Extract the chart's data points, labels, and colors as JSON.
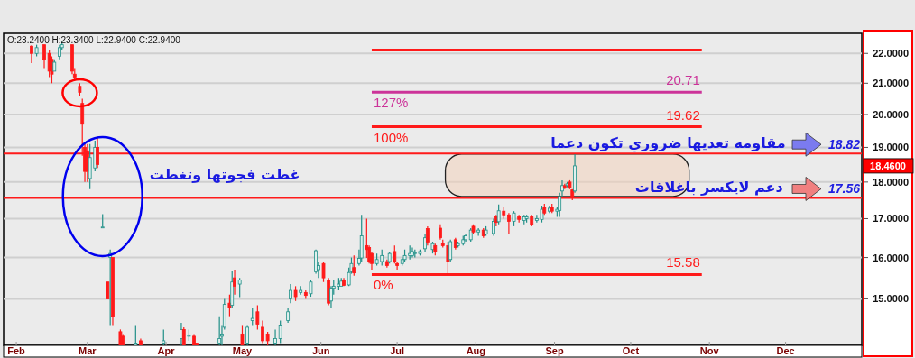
{
  "chart_data": {
    "type": "candlestick",
    "log": true,
    "grid": "y",
    "xlim": [
      "--01-27",
      "--12-31"
    ],
    "xticks": [
      {
        "value": "--02-01",
        "label": "Feb"
      },
      {
        "value": "--03-01",
        "label": "Mar"
      },
      {
        "value": "--04-01",
        "label": "Apr"
      },
      {
        "value": "--05-01",
        "label": "May"
      },
      {
        "value": "--06-01",
        "label": "Jun"
      },
      {
        "value": "--07-01",
        "label": "Jul"
      },
      {
        "value": "--08-01",
        "label": "Aug"
      },
      {
        "value": "--09-01",
        "label": "Sep"
      },
      {
        "value": "--10-01",
        "label": "Oct"
      },
      {
        "value": "--11-01",
        "label": "Nov"
      },
      {
        "value": "--12-01",
        "label": "Dec"
      }
    ],
    "ylim": [
      13.95,
      22.7
    ],
    "yticks": [
      {
        "value": 15,
        "label": "15.0000"
      },
      {
        "value": 16,
        "label": "16.0000"
      },
      {
        "value": 17,
        "label": "17.0000"
      },
      {
        "value": 18,
        "label": "18.0000"
      },
      {
        "value": 19,
        "label": "19.0000"
      },
      {
        "value": 20,
        "label": "20.0000"
      },
      {
        "value": 21,
        "label": "21.0000"
      },
      {
        "value": 22,
        "label": "22.0000"
      }
    ],
    "series": [
      {
        "type": "candlestick",
        "x": [
          "--02-07",
          "--02-09",
          "--02-12",
          "--02-14",
          "--02-15",
          "--02-16",
          "--02-18",
          "--02-19",
          "--02-23",
          "--02-24",
          "--02-26",
          "--02-27",
          "--02-28",
          "--03-01",
          "--03-02",
          "--03-04",
          "--03-05",
          "--03-07",
          "--03-09",
          "--03-10",
          "--03-11",
          "--03-14",
          "--03-15",
          "--03-20",
          "--03-22",
          "--03-31",
          "--04-07",
          "--04-08",
          "--04-10",
          "--04-12",
          "--04-13",
          "--04-22",
          "--04-23",
          "--04-24",
          "--04-26",
          "--04-27",
          "--04-28",
          "--04-30",
          "--05-01",
          "--05-03",
          "--05-05",
          "--05-07",
          "--05-09",
          "--05-11",
          "--05-14",
          "--05-16",
          "--05-19",
          "--05-20",
          "--05-22",
          "--05-24",
          "--05-26",
          "--05-28",
          "--05-30",
          "--05-31",
          "--06-02",
          "--06-04",
          "--06-05",
          "--06-06",
          "--06-08",
          "--06-09",
          "--06-10",
          "--06-12",
          "--06-13",
          "--06-14",
          "--06-16",
          "--06-17",
          "--06-19",
          "--06-20",
          "--06-21",
          "--06-23",
          "--06-25",
          "--06-27",
          "--06-28",
          "--06-30",
          "--07-01",
          "--07-03",
          "--07-04",
          "--07-06",
          "--07-07",
          "--07-08",
          "--07-10",
          "--07-12",
          "--07-13",
          "--07-15",
          "--07-16",
          "--07-18",
          "--07-19",
          "--07-21",
          "--07-22",
          "--07-24",
          "--07-25",
          "--07-27",
          "--07-28",
          "--07-30",
          "--07-31",
          "--08-02",
          "--08-04",
          "--08-05",
          "--08-08",
          "--08-09",
          "--08-10",
          "--08-12",
          "--08-14",
          "--08-16",
          "--08-18",
          "--08-20",
          "--08-21",
          "--08-23",
          "--08-25",
          "--08-27",
          "--08-28",
          "--08-30",
          "--08-31",
          "--09-02",
          "--09-03",
          "--09-04",
          "--09-05",
          "--09-06",
          "--09-07",
          "--09-08",
          "--09-09"
        ],
        "ohlc": [
          [
            22.25,
            22.28,
            21.67,
            22.0
          ],
          [
            22.0,
            22.3,
            21.9,
            22.2
          ],
          [
            22.3,
            22.3,
            21.5,
            21.8
          ],
          [
            22.0,
            22.1,
            21.2,
            21.4
          ],
          [
            21.8,
            21.9,
            21.0,
            21.3
          ],
          [
            21.4,
            21.8,
            21.4,
            21.7
          ],
          [
            21.9,
            22.3,
            21.8,
            22.2
          ],
          [
            22.2,
            22.4,
            22.1,
            22.3
          ],
          [
            22.3,
            22.3,
            21.3,
            21.4
          ],
          [
            21.3,
            21.5,
            21.1,
            21.2
          ],
          [
            20.9,
            21.0,
            20.6,
            20.7
          ],
          [
            20.35,
            20.5,
            18.75,
            19.7
          ],
          [
            19.0,
            19.1,
            18.0,
            18.3
          ],
          [
            18.9,
            19.1,
            18.0,
            18.3
          ],
          [
            18.1,
            19.1,
            17.8,
            18.7
          ],
          [
            18.4,
            19.2,
            18.3,
            19.0
          ],
          [
            19.0,
            19.3,
            18.4,
            18.5
          ],
          [
            16.78,
            17.12,
            16.78,
            16.78
          ],
          [
            15.4,
            15.4,
            15.0,
            15.0
          ],
          [
            16.0,
            16.2,
            14.4,
            16.1
          ],
          [
            16.0,
            16.0,
            14.4,
            14.6
          ],
          [
            14.25,
            14.3,
            13.95,
            13.95
          ],
          [
            14.15,
            14.2,
            13.95,
            13.95
          ],
          [
            13.95,
            14.4,
            13.95,
            14.0
          ],
          [
            14.05,
            14.1,
            13.95,
            13.95
          ],
          [
            14.0,
            14.3,
            13.95,
            14.05
          ],
          [
            14.1,
            14.45,
            13.95,
            14.3
          ],
          [
            14.3,
            14.35,
            13.95,
            13.95
          ],
          [
            14.15,
            14.3,
            14.05,
            14.18
          ],
          [
            14.15,
            14.2,
            13.95,
            13.95
          ],
          [
            14.0,
            14.0,
            13.95,
            13.95
          ],
          [
            14.0,
            14.6,
            13.95,
            14.1
          ],
          [
            14.15,
            14.4,
            13.95,
            14.2
          ],
          [
            14.35,
            15.0,
            14.3,
            14.87
          ],
          [
            14.9,
            15.1,
            14.6,
            14.8
          ],
          [
            14.85,
            15.66,
            14.8,
            15.4
          ],
          [
            15.5,
            15.7,
            15.1,
            15.3
          ],
          [
            15.35,
            15.5,
            15.04,
            15.45
          ],
          [
            14.2,
            14.4,
            13.95,
            13.95
          ],
          [
            14.0,
            14.4,
            13.95,
            14.35
          ],
          [
            14.5,
            14.8,
            14.4,
            14.55
          ],
          [
            14.7,
            14.85,
            14.3,
            14.42
          ],
          [
            14.35,
            14.5,
            14.0,
            14.05
          ],
          [
            14.2,
            14.25,
            13.95,
            14.05
          ],
          [
            14.0,
            14.3,
            13.95,
            14.1
          ],
          [
            14.1,
            14.5,
            14.0,
            14.4
          ],
          [
            14.5,
            14.8,
            14.45,
            14.7
          ],
          [
            15.0,
            15.35,
            14.9,
            15.2
          ],
          [
            15.2,
            15.3,
            14.95,
            15.05
          ],
          [
            15.15,
            15.3,
            15.1,
            15.2
          ],
          [
            15.15,
            15.2,
            15.0,
            15.08
          ],
          [
            15.12,
            15.45,
            15.05,
            15.4
          ],
          [
            15.65,
            16.2,
            15.6,
            16.17
          ],
          [
            15.7,
            15.9,
            15.5,
            15.8
          ],
          [
            15.85,
            15.9,
            15.4,
            15.5
          ],
          [
            15.45,
            15.5,
            14.85,
            14.9
          ],
          [
            14.95,
            15.3,
            14.8,
            15.25
          ],
          [
            15.25,
            15.45,
            15.1,
            15.3
          ],
          [
            15.3,
            15.5,
            15.2,
            15.35
          ],
          [
            15.3,
            15.5,
            15.3,
            15.42
          ],
          [
            15.45,
            15.5,
            15.3,
            15.32
          ],
          [
            15.33,
            15.75,
            15.3,
            15.63
          ],
          [
            15.65,
            16.0,
            15.6,
            15.85
          ],
          [
            15.75,
            16.05,
            15.55,
            15.62
          ],
          [
            15.85,
            16.2,
            15.8,
            15.98
          ],
          [
            15.99,
            17.1,
            15.9,
            16.55
          ],
          [
            16.3,
            17.0,
            15.99,
            16.2
          ],
          [
            16.25,
            16.3,
            15.85,
            15.9
          ],
          [
            16.1,
            16.15,
            15.7,
            15.85
          ],
          [
            15.85,
            16.1,
            15.8,
            15.95
          ],
          [
            15.9,
            16.2,
            15.8,
            16.05
          ],
          [
            15.9,
            15.95,
            15.75,
            15.8
          ],
          [
            15.9,
            16.15,
            15.85,
            16.1
          ],
          [
            16.15,
            16.3,
            15.85,
            15.9
          ],
          [
            15.85,
            15.9,
            15.7,
            15.8
          ],
          [
            15.85,
            16.0,
            15.8,
            15.95
          ],
          [
            15.95,
            16.2,
            15.9,
            16.05
          ],
          [
            16.05,
            16.3,
            15.95,
            16.1
          ],
          [
            16.05,
            16.25,
            16.0,
            16.15
          ],
          [
            16.1,
            16.2,
            16.0,
            16.12
          ],
          [
            16.1,
            16.2,
            16.05,
            16.15
          ],
          [
            16.22,
            16.6,
            16.15,
            16.5
          ],
          [
            16.74,
            16.8,
            16.3,
            16.39
          ],
          [
            16.2,
            16.4,
            16.1,
            16.35
          ],
          [
            16.3,
            16.35,
            16.05,
            16.15
          ],
          [
            16.75,
            16.85,
            16.45,
            16.5
          ],
          [
            16.35,
            16.45,
            16.25,
            16.3
          ],
          [
            16.3,
            16.4,
            15.58,
            15.9
          ],
          [
            15.95,
            16.45,
            15.9,
            16.4
          ],
          [
            16.45,
            16.5,
            16.2,
            16.25
          ],
          [
            16.3,
            16.4,
            16.25,
            16.35
          ],
          [
            16.35,
            16.55,
            16.3,
            16.45
          ],
          [
            16.45,
            16.6,
            16.4,
            16.55
          ],
          [
            16.45,
            16.75,
            16.4,
            16.7
          ],
          [
            16.8,
            16.85,
            16.6,
            16.65
          ],
          [
            16.65,
            16.75,
            16.55,
            16.7
          ],
          [
            16.7,
            16.75,
            16.5,
            16.55
          ],
          [
            16.6,
            16.8,
            16.55,
            16.7
          ],
          [
            16.61,
            17.0,
            16.55,
            16.93
          ],
          [
            17.05,
            17.1,
            16.8,
            16.9
          ],
          [
            16.92,
            17.38,
            16.85,
            17.21
          ],
          [
            17.2,
            17.3,
            17.0,
            17.1
          ],
          [
            17.1,
            17.15,
            16.6,
            16.93
          ],
          [
            16.93,
            17.2,
            16.8,
            17.15
          ],
          [
            17.05,
            17.1,
            16.9,
            16.98
          ],
          [
            16.95,
            17.1,
            16.85,
            17.05
          ],
          [
            17.0,
            17.1,
            16.9,
            17.05
          ],
          [
            17.05,
            17.1,
            16.8,
            16.85
          ],
          [
            16.95,
            17.1,
            16.9,
            17.0
          ],
          [
            16.98,
            17.35,
            16.9,
            17.25
          ],
          [
            17.3,
            17.4,
            17.1,
            17.15
          ],
          [
            17.2,
            17.35,
            17.15,
            17.28
          ],
          [
            17.3,
            17.4,
            17.15,
            17.2
          ],
          [
            17.2,
            17.3,
            17.05,
            17.25
          ],
          [
            17.22,
            17.7,
            17.05,
            17.59
          ],
          [
            17.75,
            18.05,
            17.6,
            17.9
          ],
          [
            17.9,
            17.95,
            17.8,
            17.85
          ],
          [
            17.9,
            18.0,
            17.85,
            17.95
          ],
          [
            18.0,
            18.05,
            17.8,
            17.85
          ],
          [
            17.78,
            17.8,
            17.5,
            17.6
          ],
          [
            17.75,
            18.8,
            17.7,
            18.46
          ]
        ]
      },
      {
        "type": "line",
        "color": "#ff1a1a",
        "x": [
          "--06-21",
          "--10-29"
        ],
        "values": [
          22.12,
          22.12
        ]
      },
      {
        "type": "line",
        "name": "127%",
        "color": "#cc3399",
        "x": [
          "--06-21",
          "--10-29"
        ],
        "values": [
          20.71,
          20.71
        ],
        "value_labels": [
          null,
          "20.71"
        ]
      },
      {
        "type": "line",
        "name": "100%",
        "color": "#ff1a1a",
        "x": [
          "--06-21",
          "--10-29"
        ],
        "values": [
          19.62,
          19.62
        ],
        "value_labels": [
          null,
          "19.62"
        ]
      },
      {
        "type": "line",
        "name": "0%",
        "color": "#ff1a1a",
        "x": [
          "--06-21",
          "--10-29"
        ],
        "values": [
          15.58,
          15.58
        ],
        "value_labels": [
          null,
          "15.58"
        ]
      }
    ],
    "ref_lines": [
      {
        "axis": "y",
        "value": 18.82,
        "label": "18.82",
        "color": "#ff1a1a"
      },
      {
        "axis": "y",
        "value": 17.56,
        "label": "17.56",
        "color": "#ff1a1a"
      }
    ],
    "annotations": [
      "O:23.2400  H:23.3400  L:22.9400  C:22.9400",
      "18.4600",
      {
        "text": "مقاومه تعديها ضروري تكون دعما",
        "x": "--12-01",
        "y": 18.82
      },
      {
        "text": "دعم لايكسر باغلاقات",
        "x": "--11-30",
        "y": 17.56
      },
      "غطت فجوتها وتغطت"
    ]
  }
}
